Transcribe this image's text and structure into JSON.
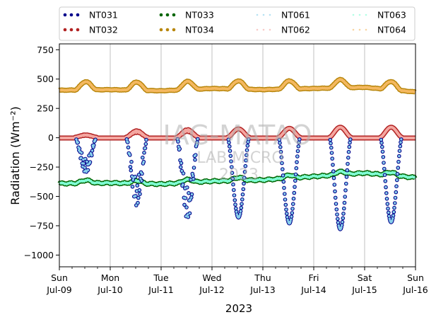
{
  "chart_data": {
    "type": "scatter",
    "title": "",
    "ylabel": "Radiation (Wm⁻²)",
    "xlabel": "2023",
    "ylim": [
      -1100,
      800
    ],
    "yticks": [
      -1000,
      -750,
      -500,
      -250,
      0,
      250,
      500,
      750
    ],
    "ytick_labels": [
      "−1000",
      "−750",
      "−500",
      "−250",
      "0",
      "250",
      "500",
      "750"
    ],
    "xlim": [
      0,
      7
    ],
    "x_units": "days from 2023-07-09 00:00",
    "xtick_labels": [
      {
        "day": "Sun",
        "date": "Jul-09"
      },
      {
        "day": "Mon",
        "date": "Jul-10"
      },
      {
        "day": "Tue",
        "date": "Jul-11"
      },
      {
        "day": "Wed",
        "date": "Jul-12"
      },
      {
        "day": "Thu",
        "date": "Jul-13"
      },
      {
        "day": "Fri",
        "date": "Jul-14"
      },
      {
        "day": "Sat",
        "date": "Jul-15"
      },
      {
        "day": "Sun",
        "date": "Jul-16"
      }
    ],
    "grid": "vertical",
    "legend_placement": "top",
    "watermark": [
      "IAG-MATAO",
      "LAB MICRO",
      "2023"
    ],
    "series": [
      {
        "name": "NT031",
        "color": "#00008b",
        "kind": "shortwave_net",
        "minima": [
          -300,
          -580,
          -700,
          -680,
          -730,
          -780,
          -720
        ]
      },
      {
        "name": "NT032",
        "color": "#b22222",
        "kind": "shortwave_up",
        "peaks": [
          25,
          60,
          70,
          75,
          80,
          90,
          90
        ]
      },
      {
        "name": "NT033",
        "color": "#006400",
        "kind": "longwave_net",
        "levels": [
          -390,
          -385,
          -395,
          -370,
          -360,
          -330,
          -300,
          -340
        ]
      },
      {
        "name": "NT034",
        "color": "#b8860b",
        "kind": "longwave_up",
        "levels": [
          405,
          410,
          400,
          420,
          410,
          420,
          430,
          390
        ]
      },
      {
        "name": "NT061",
        "color": "#87ceeb",
        "kind": "shortwave_net_overlay"
      },
      {
        "name": "NT062",
        "color": "#f4a6a0",
        "kind": "shortwave_up_overlay"
      },
      {
        "name": "NT063",
        "color": "#7fffd4",
        "kind": "longwave_net_overlay"
      },
      {
        "name": "NT064",
        "color": "#f4b860",
        "kind": "longwave_up_overlay"
      }
    ]
  }
}
